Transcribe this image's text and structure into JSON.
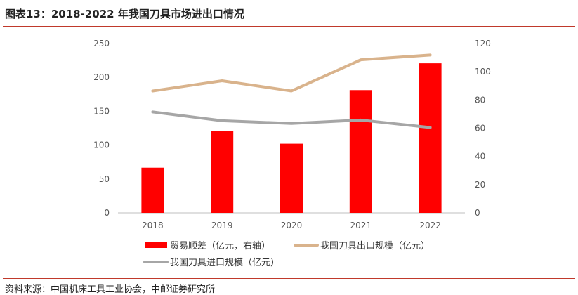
{
  "title": "图表13：2018-2022 年我国刀具市场进出口情况",
  "source": "资料来源：中国机床工具工业协会，中邮证券研究所",
  "colors": {
    "bar": "#ff0000",
    "export": "#d9b38c",
    "import": "#a6a6a6",
    "accent": "#c0392b"
  },
  "chart_data": {
    "type": "bar",
    "categories": [
      "2018",
      "2019",
      "2020",
      "2021",
      "2022"
    ],
    "series": [
      {
        "name": "贸易顺差（亿元，右轴）",
        "type": "bar",
        "axis": "right",
        "values": [
          32,
          58,
          49,
          87,
          106
        ]
      },
      {
        "name": "我国刀具出口规模（亿元）",
        "type": "line",
        "axis": "left",
        "values": [
          180,
          195,
          180,
          226,
          233
        ]
      },
      {
        "name": "我国刀具进口规模（亿元）",
        "type": "line",
        "axis": "left",
        "values": [
          149,
          136,
          132,
          137,
          126
        ]
      }
    ],
    "y_left": {
      "ylim": [
        0,
        250
      ],
      "ticks": [
        "0",
        "50",
        "100",
        "150",
        "200",
        "250"
      ]
    },
    "y_right": {
      "ylim": [
        0,
        120
      ],
      "ticks": [
        "0",
        "20",
        "40",
        "60",
        "80",
        "100",
        "120"
      ]
    },
    "grid": false,
    "legend_position": "bottom"
  }
}
